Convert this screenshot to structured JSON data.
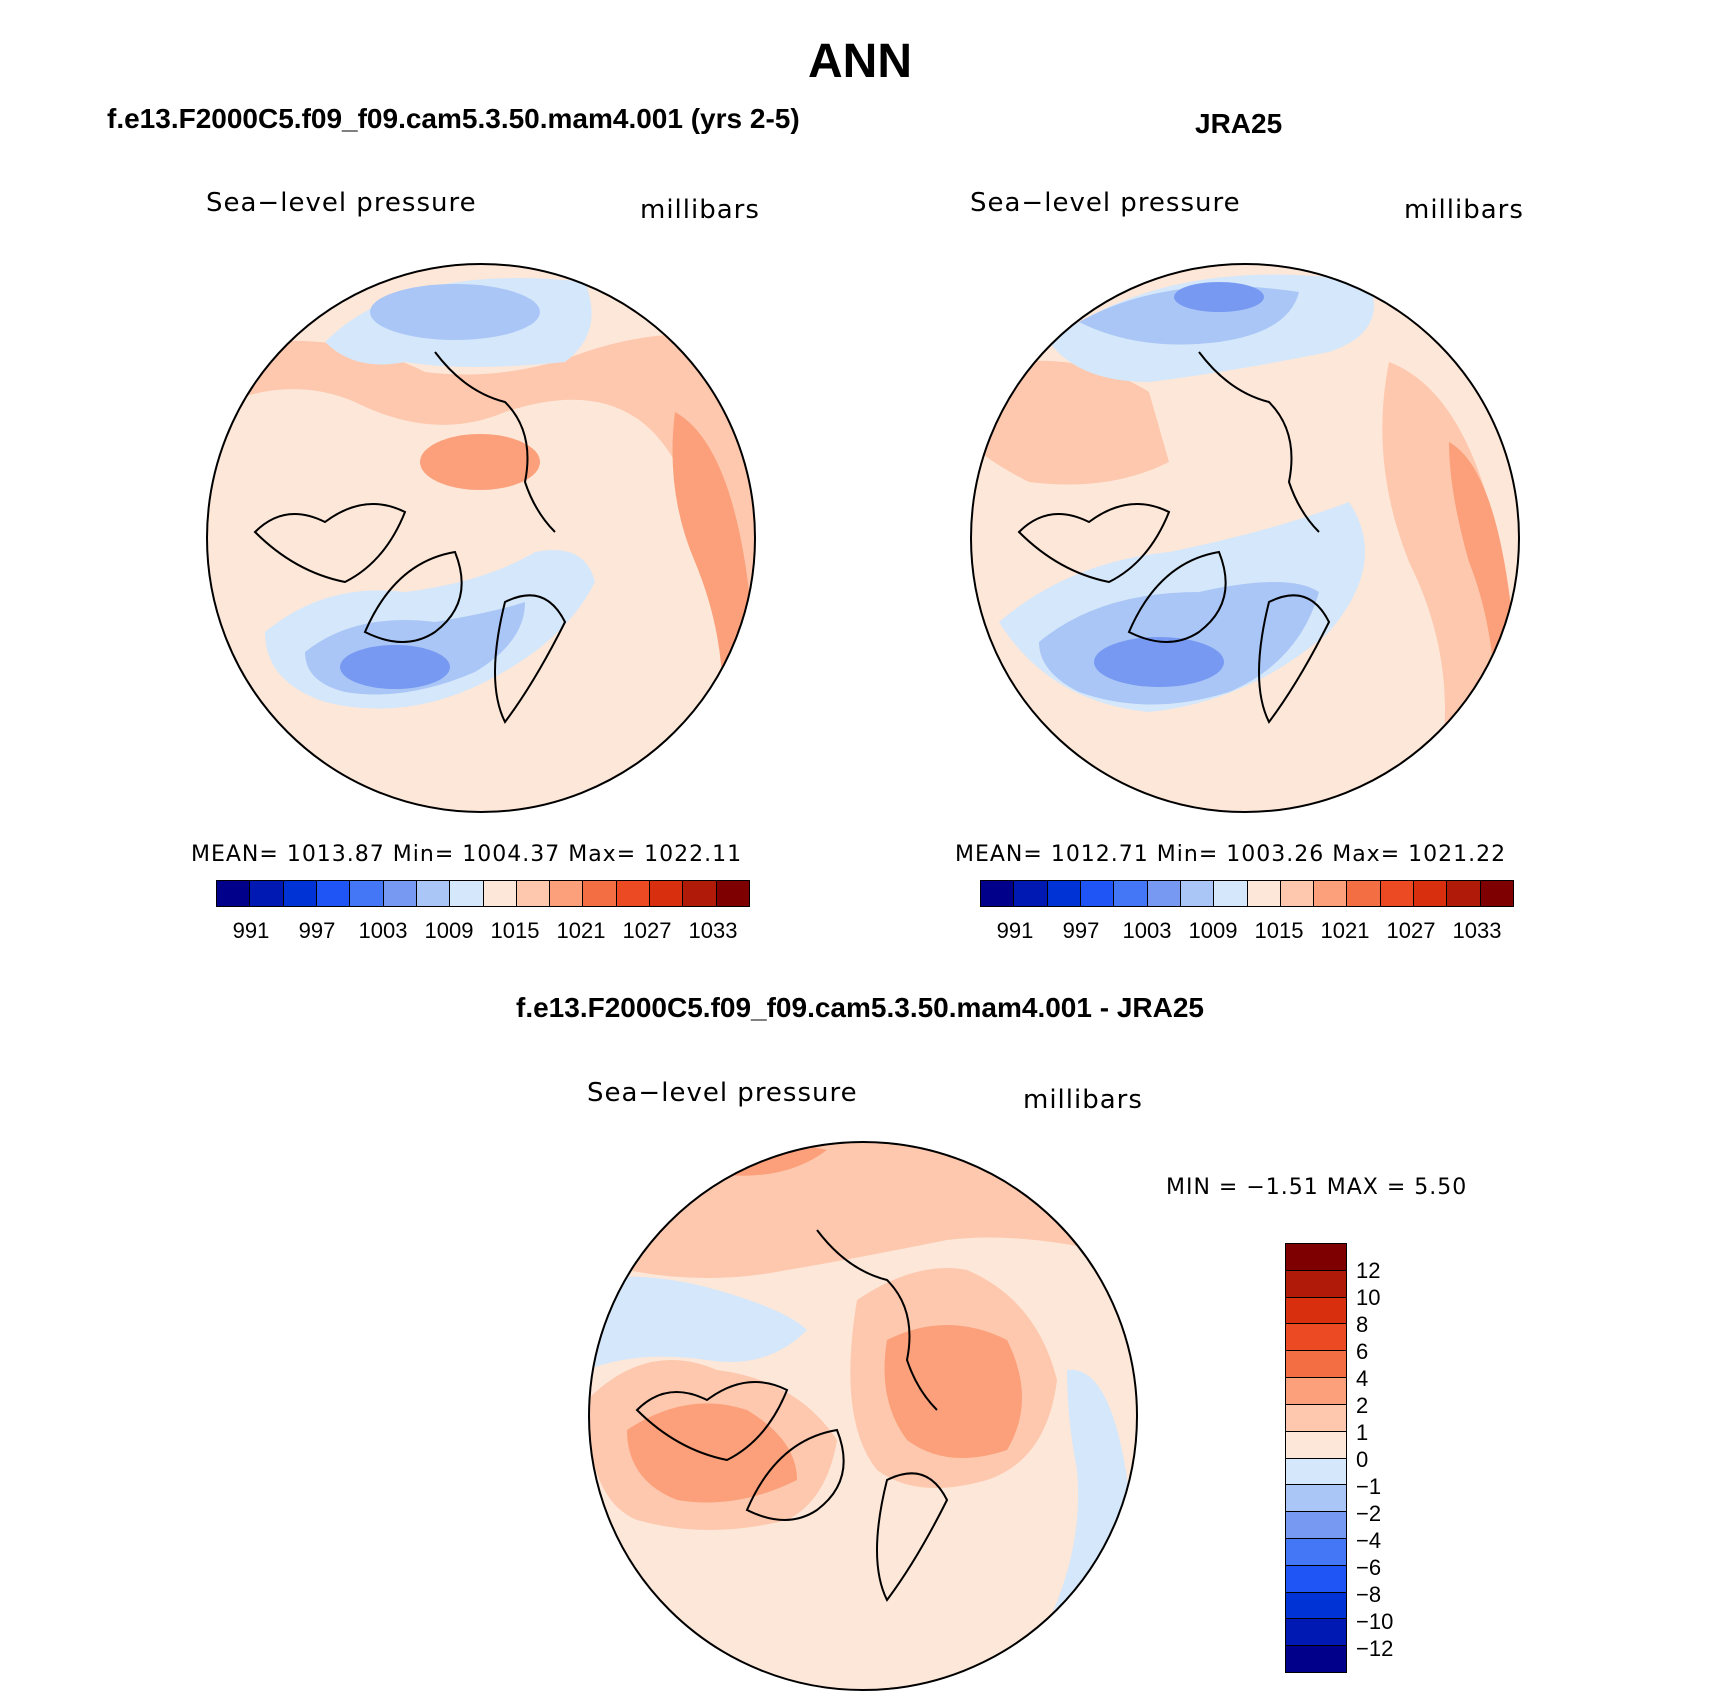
{
  "figure": {
    "title": "ANN"
  },
  "panels": {
    "left": {
      "title": "f.e13.F2000C5.f09_f09.cam5.3.50.mam4.001 (yrs 2-5)",
      "variable": "Sea−level pressure",
      "units": "millibars",
      "stats": "MEAN=  1013.87    Min=  1004.37    Max=  1022.11"
    },
    "right": {
      "title": "JRA25",
      "variable": "Sea−level pressure",
      "units": "millibars",
      "stats": "MEAN=  1012.71    Min=  1003.26    Max=  1021.22"
    },
    "diff": {
      "title": "f.e13.F2000C5.f09_f09.cam5.3.50.mam4.001 - JRA25",
      "variable": "Sea−level pressure",
      "units": "millibars",
      "stats": "MIN =    −1.51  MAX =     5.50"
    }
  },
  "colorbar_abs": {
    "colors": [
      "#00008b",
      "#0019b3",
      "#0033d6",
      "#1f55f5",
      "#4477f5",
      "#7799f2",
      "#a9c6f6",
      "#d5e7fa",
      "#fde7d8",
      "#fdc8ae",
      "#fba07a",
      "#f46e44",
      "#eb4a22",
      "#d8300f",
      "#b01a08",
      "#7f0000"
    ],
    "labels": [
      "991",
      "997",
      "1003",
      "1009",
      "1015",
      "1021",
      "1027",
      "1033"
    ]
  },
  "colorbar_diff": {
    "colors": [
      "#7f0000",
      "#b01a08",
      "#d8300f",
      "#eb4a22",
      "#f46e44",
      "#fba07a",
      "#fdc8ae",
      "#fde7d8",
      "#d5e7fa",
      "#a9c6f6",
      "#7799f2",
      "#4477f5",
      "#1f55f5",
      "#0033d6",
      "#0019b3",
      "#00008b"
    ],
    "labels": [
      "12",
      "10",
      "8",
      "6",
      "4",
      "2",
      "1",
      "0",
      "−1",
      "−2",
      "−4",
      "−6",
      "−8",
      "−10",
      "−12"
    ]
  },
  "legend_colors": {
    "ocean_pos_light": "#fde7d8",
    "pos_mid": "#fdc8ae",
    "pos_strong": "#fba07a",
    "neg_light": "#d5e7fa",
    "neg_mid": "#a9c6f6",
    "neg_strong": "#7799f2"
  }
}
